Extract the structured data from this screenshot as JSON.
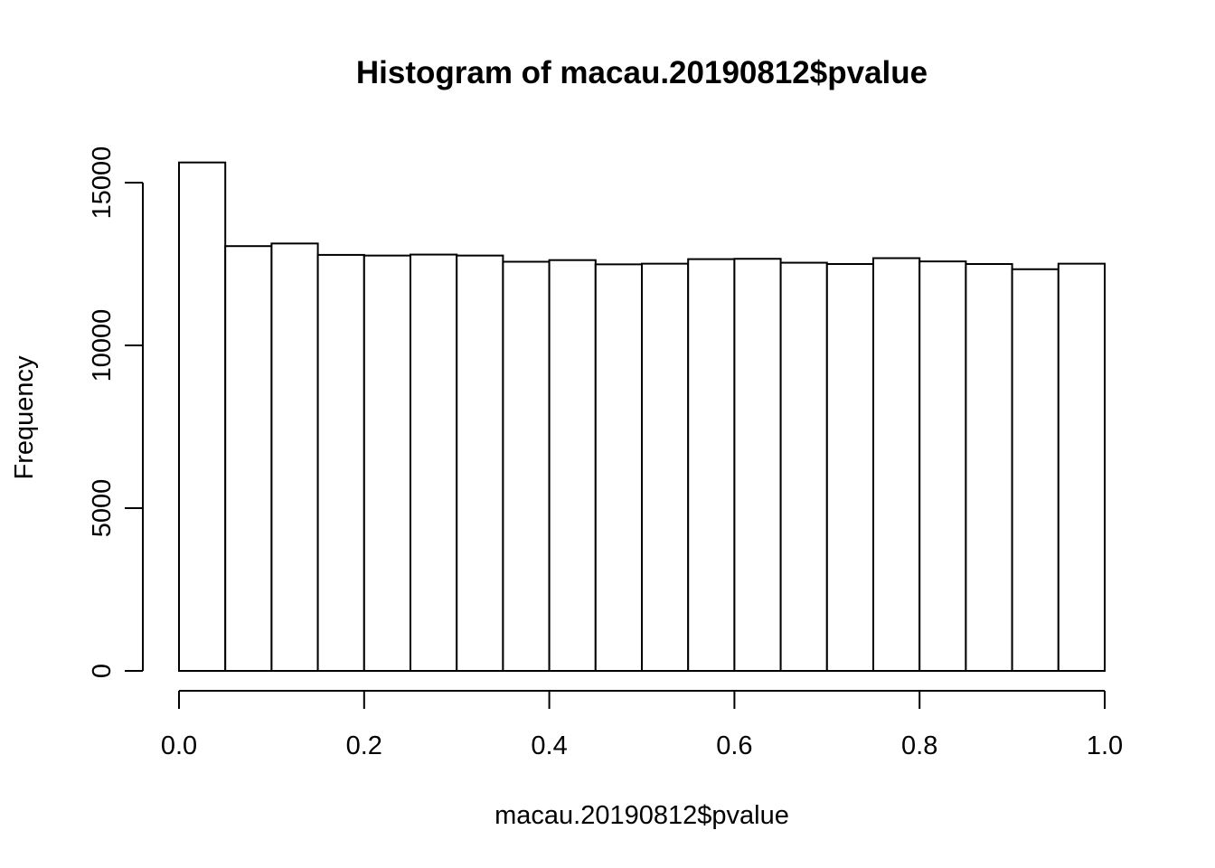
{
  "chart_data": {
    "type": "bar",
    "title": "Histogram of macau.20190812$pvalue",
    "xlabel": "macau.20190812$pvalue",
    "ylabel": "Frequency",
    "x_ticks": [
      "0.0",
      "0.2",
      "0.4",
      "0.6",
      "0.8",
      "1.0"
    ],
    "x_tick_values": [
      0.0,
      0.2,
      0.4,
      0.6,
      0.8,
      1.0
    ],
    "y_ticks": [
      "0",
      "5000",
      "10000",
      "15000"
    ],
    "y_tick_values": [
      0,
      5000,
      10000,
      15000
    ],
    "xlim": [
      0,
      1
    ],
    "ylim": [
      0,
      15600
    ],
    "grid": false,
    "legend": "none",
    "bin_width": 0.05,
    "bins": [
      {
        "start": 0.0,
        "end": 0.05,
        "count": 15620
      },
      {
        "start": 0.05,
        "end": 0.1,
        "count": 13050
      },
      {
        "start": 0.1,
        "end": 0.15,
        "count": 13130
      },
      {
        "start": 0.15,
        "end": 0.2,
        "count": 12780
      },
      {
        "start": 0.2,
        "end": 0.25,
        "count": 12760
      },
      {
        "start": 0.25,
        "end": 0.3,
        "count": 12790
      },
      {
        "start": 0.3,
        "end": 0.35,
        "count": 12760
      },
      {
        "start": 0.35,
        "end": 0.4,
        "count": 12570
      },
      {
        "start": 0.4,
        "end": 0.45,
        "count": 12620
      },
      {
        "start": 0.45,
        "end": 0.5,
        "count": 12490
      },
      {
        "start": 0.5,
        "end": 0.55,
        "count": 12510
      },
      {
        "start": 0.55,
        "end": 0.6,
        "count": 12650
      },
      {
        "start": 0.6,
        "end": 0.65,
        "count": 12660
      },
      {
        "start": 0.65,
        "end": 0.7,
        "count": 12540
      },
      {
        "start": 0.7,
        "end": 0.75,
        "count": 12500
      },
      {
        "start": 0.75,
        "end": 0.8,
        "count": 12680
      },
      {
        "start": 0.8,
        "end": 0.85,
        "count": 12580
      },
      {
        "start": 0.85,
        "end": 0.9,
        "count": 12500
      },
      {
        "start": 0.9,
        "end": 0.95,
        "count": 12340
      },
      {
        "start": 0.95,
        "end": 1.0,
        "count": 12510
      }
    ],
    "colors": {
      "bar_fill": "#ffffff",
      "bar_stroke": "#000000",
      "text": "#000000"
    }
  }
}
